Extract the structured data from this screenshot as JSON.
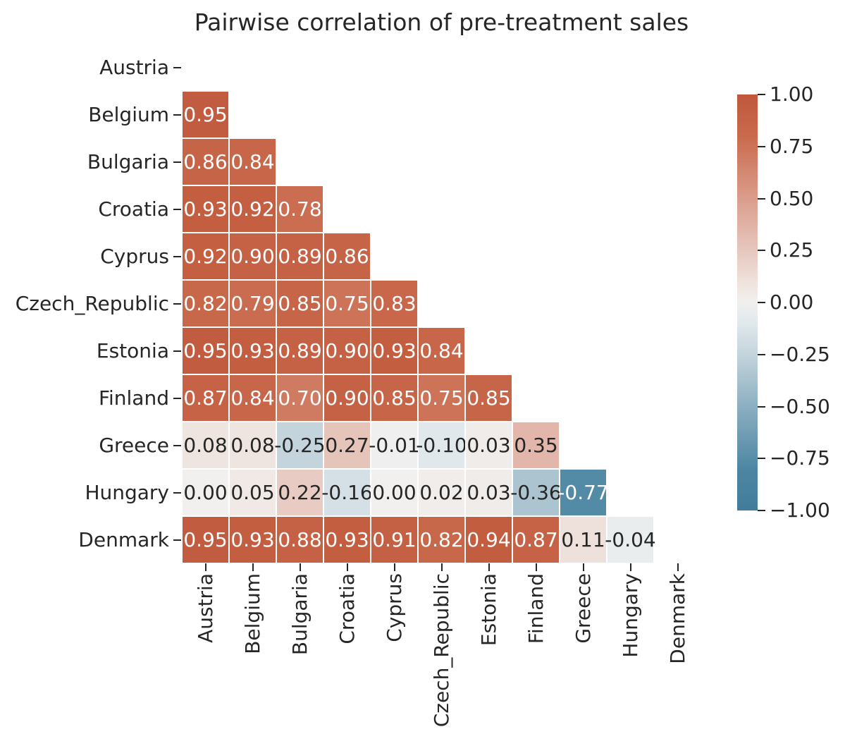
{
  "chart_data": {
    "type": "heatmap",
    "title": "Pairwise correlation of pre-treatment sales",
    "categories": [
      "Austria",
      "Belgium",
      "Bulgaria",
      "Croatia",
      "Cyprus",
      "Czech_Republic",
      "Estonia",
      "Finland",
      "Greece",
      "Hungary",
      "Denmark"
    ],
    "mask": "upper triangle including diagonal hidden; only pairs where row index > column index are drawn",
    "value_format": "2 decimal places",
    "vmin": -1,
    "vmax": 1,
    "rows": [
      {
        "name": "Austria",
        "values": []
      },
      {
        "name": "Belgium",
        "values": [
          0.95
        ]
      },
      {
        "name": "Bulgaria",
        "values": [
          0.86,
          0.84
        ]
      },
      {
        "name": "Croatia",
        "values": [
          0.93,
          0.92,
          0.78
        ]
      },
      {
        "name": "Cyprus",
        "values": [
          0.92,
          0.9,
          0.89,
          0.86
        ]
      },
      {
        "name": "Czech_Republic",
        "values": [
          0.82,
          0.79,
          0.85,
          0.75,
          0.83
        ]
      },
      {
        "name": "Estonia",
        "values": [
          0.95,
          0.93,
          0.89,
          0.9,
          0.93,
          0.84
        ]
      },
      {
        "name": "Finland",
        "values": [
          0.87,
          0.84,
          0.7,
          0.9,
          0.85,
          0.75,
          0.85
        ]
      },
      {
        "name": "Greece",
        "values": [
          0.08,
          0.08,
          -0.25,
          0.27,
          -0.01,
          -0.1,
          0.03,
          0.35
        ]
      },
      {
        "name": "Hungary",
        "values": [
          0.0,
          0.05,
          0.22,
          -0.16,
          0.0,
          0.02,
          0.03,
          -0.36,
          -0.77
        ]
      },
      {
        "name": "Denmark",
        "values": [
          0.95,
          0.93,
          0.88,
          0.93,
          0.91,
          0.82,
          0.94,
          0.87,
          0.11,
          -0.04
        ]
      }
    ],
    "colorbar": {
      "position": "right",
      "ticks": [
        {
          "label": "1.00",
          "value": 1.0
        },
        {
          "label": "0.75",
          "value": 0.75
        },
        {
          "label": "0.50",
          "value": 0.5
        },
        {
          "label": "0.25",
          "value": 0.25
        },
        {
          "label": "0.00",
          "value": 0.0
        },
        {
          "label": "−0.25",
          "value": -0.25
        },
        {
          "label": "−0.50",
          "value": -0.5
        },
        {
          "label": "−0.75",
          "value": -0.75
        },
        {
          "label": "−1.00",
          "value": -1.0
        }
      ]
    },
    "colormap": {
      "name": "diverging blue-white-terracotta",
      "stops": [
        {
          "v": 1.0,
          "color": [
            192,
            87,
            59
          ]
        },
        {
          "v": 0.8,
          "color": [
            201,
            106,
            77
          ]
        },
        {
          "v": 0.5,
          "color": [
            219,
            157,
            140
          ]
        },
        {
          "v": 0.25,
          "color": [
            230,
            199,
            190
          ]
        },
        {
          "v": 0.1,
          "color": [
            239,
            226,
            220
          ]
        },
        {
          "v": 0.0,
          "color": [
            241,
            240,
            239
          ]
        },
        {
          "v": -0.1,
          "color": [
            224,
            232,
            236
          ]
        },
        {
          "v": -0.25,
          "color": [
            196,
            212,
            220
          ]
        },
        {
          "v": -0.5,
          "color": [
            140,
            175,
            193
          ]
        },
        {
          "v": -0.8,
          "color": [
            77,
            134,
            163
          ]
        },
        {
          "v": -1.0,
          "color": [
            65,
            125,
            155
          ]
        }
      ]
    },
    "colors": {
      "annotation_text_light": "#ffffff",
      "annotation_text_dark": "#262626",
      "axis_text": "#262626",
      "background": "#ffffff",
      "cell_gap": "#ffffff"
    }
  }
}
